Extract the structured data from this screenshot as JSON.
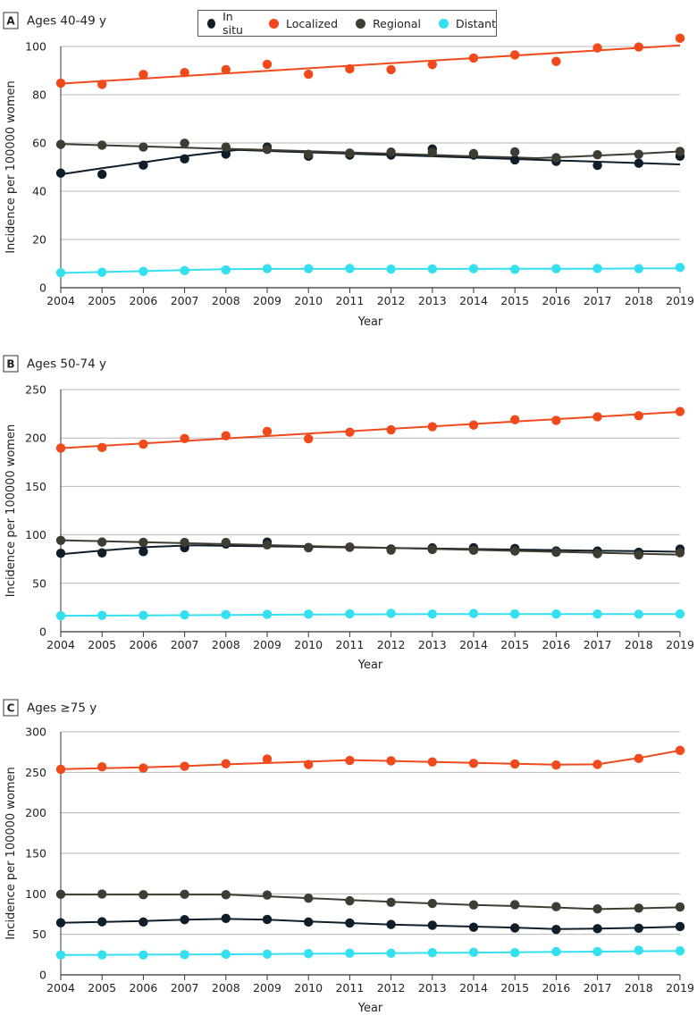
{
  "legend": {
    "items": [
      {
        "name": "In situ",
        "color": "#0f1e2b"
      },
      {
        "name": "Localized",
        "color": "#f04a1c"
      },
      {
        "name": "Regional",
        "color": "#3f3d32"
      },
      {
        "name": "Distant",
        "color": "#34e0f0"
      }
    ]
  },
  "chart_data": [
    {
      "type": "scatter",
      "panel": "A",
      "title": "Ages 40-49 y",
      "xlabel": "Year",
      "ylabel": "Incidence per 100000 women",
      "ylim": [
        0,
        100
      ],
      "yticks": [
        0,
        20,
        40,
        60,
        80,
        100
      ],
      "x": [
        2004,
        2005,
        2006,
        2007,
        2008,
        2009,
        2010,
        2011,
        2012,
        2013,
        2014,
        2015,
        2016,
        2017,
        2018,
        2019
      ],
      "series": [
        {
          "name": "In situ",
          "color": "#0f1e2b",
          "values": [
            47.5,
            47,
            50.8,
            53.4,
            55.4,
            58.3,
            54.5,
            55,
            55,
            57.5,
            55,
            53,
            52.4,
            50.7,
            51.6,
            54.5
          ],
          "trend": [
            47,
            49.7,
            52.3,
            55,
            57.1,
            56.5,
            55.9,
            55.3,
            54.7,
            54.1,
            53.5,
            52.9,
            52.3,
            51.7,
            51.1
          ]
        },
        {
          "name": "Localized",
          "color": "#f04a1c",
          "values": [
            84.8,
            84.3,
            88.4,
            89.2,
            90.4,
            92.6,
            88.5,
            90.7,
            90.4,
            92.5,
            95.2,
            96.5,
            93.8,
            99.4,
            99.8,
            103.4
          ],
          "trend": [
            84.6,
            100.5
          ]
        },
        {
          "name": "Regional",
          "color": "#3f3d32",
          "values": [
            59.4,
            59.1,
            58.3,
            59.9,
            58.3,
            57.3,
            55.3,
            55.8,
            56.2,
            56.1,
            55.6,
            56.3,
            53.9,
            55.1,
            55.3,
            56.5
          ],
          "trend": [
            59.6,
            59.0,
            58.4,
            57.8,
            57.3,
            56.7,
            56.1,
            55.5,
            54.9,
            54.3,
            53.7,
            54.5,
            55.4,
            56.5
          ]
        },
        {
          "name": "Distant",
          "color": "#34e0f0",
          "values": [
            6.2,
            6.4,
            6.8,
            7.1,
            7.4,
            7.9,
            7.9,
            8,
            7.7,
            7.8,
            7.9,
            7.6,
            7.9,
            8,
            7.9,
            8.4
          ],
          "trend": [
            6.1,
            6.5,
            6.9,
            7.3,
            7.7,
            7.8,
            7.8,
            7.8,
            7.8,
            7.8,
            7.8,
            7.9,
            7.9,
            7.9,
            8.0,
            8.0
          ]
        }
      ]
    },
    {
      "type": "scatter",
      "panel": "B",
      "title": "Ages 50-74 y",
      "xlabel": "Year",
      "ylabel": "Incidence per 100000 women",
      "ylim": [
        0,
        250
      ],
      "yticks": [
        0,
        50,
        100,
        150,
        200,
        250
      ],
      "x": [
        2004,
        2005,
        2006,
        2007,
        2008,
        2009,
        2010,
        2011,
        2012,
        2013,
        2014,
        2015,
        2016,
        2017,
        2018,
        2019
      ],
      "series": [
        {
          "name": "In situ",
          "color": "#0f1e2b",
          "values": [
            81,
            81.4,
            82.7,
            86.8,
            90.6,
            92.5,
            87,
            87.2,
            85.4,
            86.6,
            86.8,
            86,
            83.4,
            83.3,
            82,
            85.3
          ],
          "trend": [
            80,
            84,
            87.5,
            89.2,
            88.6,
            88.0,
            87.4,
            86.8,
            86.2,
            85.6,
            85.0,
            84.4,
            83.8,
            83.2,
            82.6
          ]
        },
        {
          "name": "Localized",
          "color": "#f04a1c",
          "values": [
            189.6,
            190.2,
            193.7,
            199.4,
            202.3,
            206.8,
            199.2,
            206,
            208.4,
            211.7,
            213.4,
            218.9,
            218.2,
            221.9,
            223,
            227.3
          ],
          "trend": [
            189.5,
            192,
            194.5,
            197,
            199.5,
            202,
            204.5,
            207,
            209.5,
            212,
            214.5,
            217,
            219.5,
            222,
            224.5,
            227
          ]
        },
        {
          "name": "Regional",
          "color": "#3f3d32",
          "values": [
            94.3,
            92.6,
            92.3,
            92.2,
            92.2,
            89.7,
            86.7,
            87.4,
            84.2,
            84.9,
            84.1,
            83.3,
            82,
            80.6,
            79.3,
            81.6
          ],
          "trend": [
            94.5,
            79.5
          ]
        },
        {
          "name": "Distant",
          "color": "#34e0f0",
          "values": [
            16.5,
            16.9,
            16.9,
            17.4,
            17.7,
            17.9,
            18.2,
            18.5,
            19,
            18.3,
            18.8,
            18.4,
            18.3,
            18.3,
            18.1,
            18.4
          ],
          "trend": [
            16.5,
            16.7,
            16.9,
            17.1,
            17.3,
            17.5,
            17.7,
            17.9,
            18.1,
            18.2,
            18.2,
            18.2,
            18.2,
            18.2,
            18.2,
            18.2
          ]
        }
      ]
    },
    {
      "type": "scatter",
      "panel": "C",
      "title": "Ages ≥75 y",
      "xlabel": "Year",
      "ylabel": "Incidence per 100000 women",
      "ylim": [
        0,
        300
      ],
      "yticks": [
        0,
        50,
        100,
        150,
        200,
        250,
        300
      ],
      "x": [
        2004,
        2005,
        2006,
        2007,
        2008,
        2009,
        2010,
        2011,
        2012,
        2013,
        2014,
        2015,
        2016,
        2017,
        2018,
        2019
      ],
      "series": [
        {
          "name": "In situ",
          "color": "#0f1e2b",
          "values": [
            64.3,
            65.5,
            65.2,
            68.1,
            69.7,
            68.4,
            65.2,
            64,
            62.3,
            61.3,
            58.8,
            57.9,
            56,
            57,
            57.6,
            59.6
          ],
          "trend": [
            64.3,
            65.3,
            66.5,
            68,
            69,
            68,
            66,
            64,
            62,
            60.8,
            59.6,
            58.4,
            56.5,
            57,
            58,
            59.5
          ]
        },
        {
          "name": "Localized",
          "color": "#f04a1c",
          "values": [
            253.7,
            256.8,
            255.3,
            257.5,
            260.6,
            266.4,
            259.6,
            264.6,
            264.2,
            262.8,
            261.1,
            260.4,
            259,
            259.8,
            267.1,
            277
          ],
          "trend": [
            254,
            255,
            256.2,
            257.6,
            259.9,
            261.5,
            263.2,
            265.1,
            264,
            262.8,
            261.7,
            260.6,
            259.5,
            259.8,
            267.7,
            276.9
          ]
        },
        {
          "name": "Regional",
          "color": "#3f3d32",
          "values": [
            99.4,
            99.7,
            98.9,
            99.5,
            98.9,
            98.5,
            94.6,
            91.4,
            89.6,
            88.2,
            86.4,
            86.7,
            84.2,
            81.4,
            82.4,
            83.8
          ],
          "trend": [
            99.1,
            99.1,
            99.1,
            99.1,
            99.1,
            97,
            94.7,
            92.4,
            90.2,
            88.1,
            86.2,
            84.9,
            83.2,
            81.2,
            82.2,
            83.4
          ]
        },
        {
          "name": "Distant",
          "color": "#34e0f0",
          "values": [
            24.6,
            24.7,
            24.6,
            25,
            25.5,
            25.6,
            26.2,
            26.7,
            26.7,
            27.4,
            27.9,
            27.4,
            28.8,
            28.8,
            30.4,
            29.6
          ],
          "trend": [
            24.5,
            24.7,
            24.9,
            25.1,
            25.4,
            25.7,
            26,
            26.3,
            26.7,
            27.1,
            27.5,
            27.9,
            28.3,
            28.7,
            29.1,
            29.5
          ]
        }
      ]
    }
  ]
}
